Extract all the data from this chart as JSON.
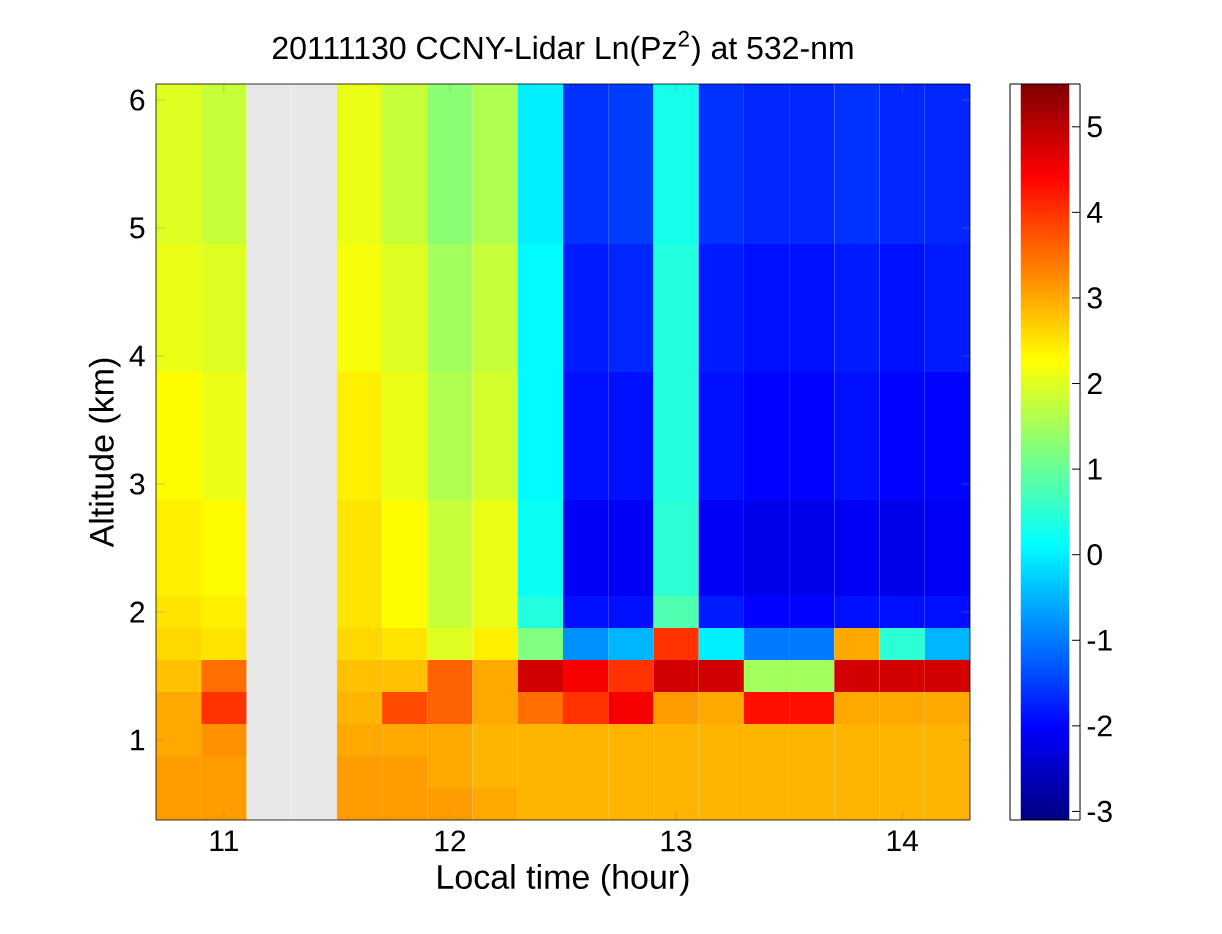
{
  "chart_data": {
    "type": "heatmap",
    "title": "20111130 CCNY-Lidar Ln(Pz$^{2}$) at 532-nm",
    "xlabel": "Local time (hour)",
    "ylabel": "Altitude (km)",
    "categories": [
      null,
      "11",
      null,
      null,
      null,
      null,
      "12",
      null,
      null,
      null,
      null,
      "13",
      null,
      null,
      null,
      null,
      "14",
      null
    ],
    "y_categories": [
      "6",
      null,
      null,
      null,
      "5",
      null,
      null,
      null,
      "4",
      null,
      null,
      null,
      "3",
      null,
      null,
      null,
      "2",
      null,
      null,
      null,
      "1",
      null,
      null
    ],
    "clim": [
      -3.1,
      5.5
    ],
    "cticks": [
      -3,
      -2,
      -1,
      0,
      1,
      2,
      3,
      4,
      5
    ],
    "cells": [
      [
        2.0,
        1.8,
        null,
        null,
        2.1,
        1.8,
        1.3,
        1.6,
        0.0,
        -1.6,
        -1.5,
        0.3,
        -1.6,
        -1.7,
        -1.7,
        -1.6,
        -1.7,
        -1.7
      ],
      [
        2.0,
        1.8,
        null,
        null,
        2.1,
        1.8,
        1.3,
        1.6,
        0.0,
        -1.6,
        -1.5,
        0.3,
        -1.6,
        -1.7,
        -1.7,
        -1.6,
        -1.7,
        -1.7
      ],
      [
        2.0,
        1.8,
        null,
        null,
        2.1,
        1.8,
        1.3,
        1.6,
        0.0,
        -1.6,
        -1.5,
        0.3,
        -1.6,
        -1.7,
        -1.7,
        -1.6,
        -1.7,
        -1.7
      ],
      [
        2.0,
        1.8,
        null,
        null,
        2.1,
        1.8,
        1.3,
        1.6,
        0.0,
        -1.6,
        -1.5,
        0.3,
        -1.6,
        -1.7,
        -1.7,
        -1.6,
        -1.7,
        -1.7
      ],
      [
        2.0,
        1.8,
        null,
        null,
        2.1,
        1.8,
        1.3,
        1.6,
        0.0,
        -1.6,
        -1.5,
        0.3,
        -1.6,
        -1.7,
        -1.7,
        -1.6,
        -1.7,
        -1.7
      ],
      [
        2.1,
        2.0,
        null,
        null,
        2.2,
        2.0,
        1.5,
        1.8,
        0.1,
        -1.8,
        -1.7,
        0.4,
        -1.8,
        -1.9,
        -1.9,
        -1.8,
        -1.9,
        -1.8
      ],
      [
        2.1,
        2.0,
        null,
        null,
        2.2,
        2.0,
        1.5,
        1.8,
        0.1,
        -1.8,
        -1.7,
        0.4,
        -1.8,
        -1.9,
        -1.9,
        -1.8,
        -1.9,
        -1.8
      ],
      [
        2.1,
        2.0,
        null,
        null,
        2.2,
        2.0,
        1.5,
        1.8,
        0.1,
        -1.8,
        -1.7,
        0.4,
        -1.8,
        -1.9,
        -1.9,
        -1.8,
        -1.9,
        -1.8
      ],
      [
        2.1,
        2.0,
        null,
        null,
        2.2,
        2.0,
        1.5,
        1.8,
        0.1,
        -1.8,
        -1.7,
        0.4,
        -1.8,
        -1.9,
        -1.9,
        -1.8,
        -1.9,
        -1.8
      ],
      [
        2.3,
        2.1,
        null,
        null,
        2.4,
        2.1,
        1.6,
        1.9,
        0.1,
        -1.9,
        -1.9,
        0.4,
        -1.9,
        -2.0,
        -2.0,
        -1.9,
        -2.0,
        -2.0
      ],
      [
        2.3,
        2.1,
        null,
        null,
        2.4,
        2.1,
        1.6,
        1.9,
        0.1,
        -1.9,
        -1.9,
        0.4,
        -1.9,
        -2.0,
        -2.0,
        -1.9,
        -2.0,
        -2.0
      ],
      [
        2.3,
        2.1,
        null,
        null,
        2.4,
        2.1,
        1.6,
        1.9,
        0.1,
        -1.9,
        -1.9,
        0.4,
        -1.9,
        -2.0,
        -2.0,
        -1.9,
        -2.0,
        -2.0
      ],
      [
        2.3,
        2.1,
        null,
        null,
        2.4,
        2.1,
        1.6,
        1.9,
        0.1,
        -1.9,
        -1.9,
        0.4,
        -1.9,
        -2.0,
        -2.0,
        -1.9,
        -2.0,
        -2.0
      ],
      [
        2.4,
        2.3,
        null,
        null,
        2.5,
        2.3,
        1.8,
        2.1,
        0.2,
        -2.1,
        -2.1,
        0.5,
        -2.1,
        -2.2,
        -2.2,
        -2.1,
        -2.2,
        -2.1
      ],
      [
        2.4,
        2.3,
        null,
        null,
        2.5,
        2.3,
        1.8,
        2.1,
        0.2,
        -2.1,
        -2.1,
        0.5,
        -2.1,
        -2.2,
        -2.2,
        -2.1,
        -2.2,
        -2.1
      ],
      [
        2.4,
        2.3,
        null,
        null,
        2.5,
        2.3,
        1.8,
        2.1,
        0.2,
        -2.1,
        -2.1,
        0.5,
        -2.1,
        -2.2,
        -2.2,
        -2.1,
        -2.2,
        -2.1
      ],
      [
        2.5,
        2.4,
        null,
        null,
        2.5,
        2.3,
        1.8,
        2.1,
        0.4,
        -1.9,
        -1.9,
        0.8,
        -1.8,
        -2.0,
        -2.0,
        -1.9,
        -1.9,
        -1.9
      ],
      [
        2.6,
        2.5,
        null,
        null,
        2.6,
        2.5,
        2.0,
        2.4,
        1.2,
        -0.8,
        -0.5,
        4.0,
        0.0,
        -1.0,
        -1.0,
        3.0,
        0.5,
        -0.5
      ],
      [
        2.8,
        3.5,
        null,
        null,
        2.8,
        2.8,
        3.6,
        3.0,
        4.8,
        4.5,
        4.0,
        4.8,
        4.8,
        1.5,
        1.5,
        4.8,
        4.8,
        4.8
      ],
      [
        3.0,
        4.0,
        null,
        null,
        2.9,
        3.8,
        3.6,
        3.0,
        3.5,
        4.0,
        4.5,
        3.1,
        3.0,
        4.3,
        4.3,
        3.0,
        3.0,
        3.0
      ],
      [
        3.0,
        3.2,
        null,
        null,
        3.0,
        3.0,
        3.0,
        2.9,
        2.9,
        2.9,
        2.9,
        2.9,
        2.9,
        2.9,
        2.9,
        2.9,
        2.9,
        2.9
      ],
      [
        3.1,
        3.1,
        null,
        null,
        3.1,
        3.1,
        3.0,
        2.9,
        2.9,
        2.9,
        2.9,
        2.9,
        2.9,
        2.9,
        2.9,
        2.9,
        2.9,
        2.9
      ],
      [
        3.1,
        3.1,
        null,
        null,
        3.1,
        3.1,
        3.1,
        3.0,
        2.9,
        2.9,
        2.9,
        2.9,
        2.9,
        2.9,
        2.9,
        2.9,
        2.9,
        2.9
      ]
    ]
  }
}
